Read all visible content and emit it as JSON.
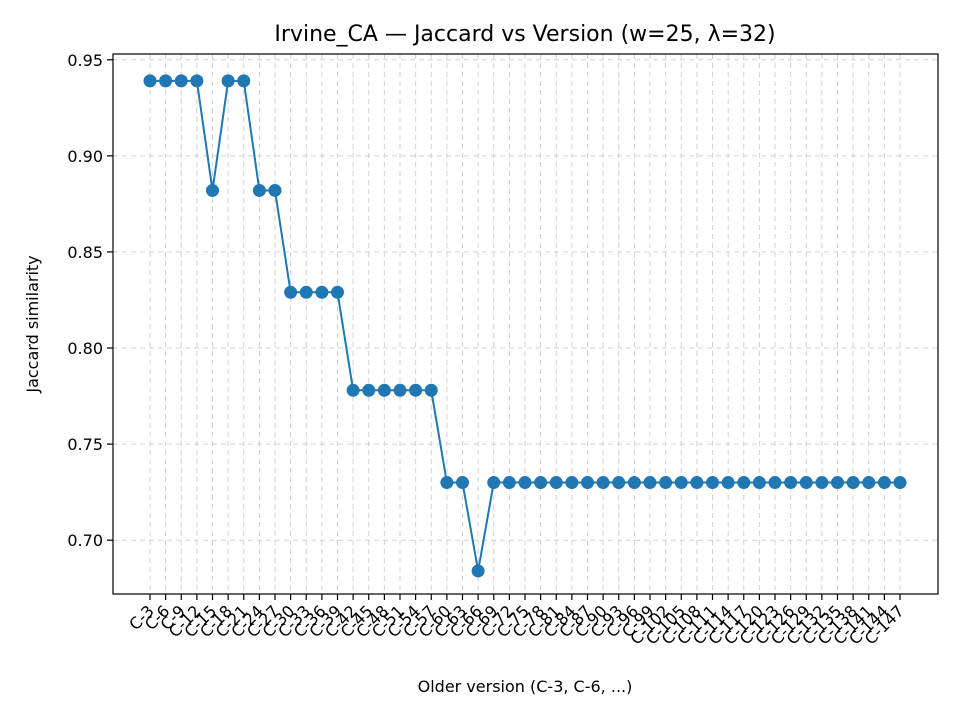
{
  "chart_data": {
    "type": "line",
    "title": "Irvine_CA — Jaccard vs Version (w=25, λ=32)",
    "xlabel": "Older version (C-3, C-6, ...)",
    "ylabel": "Jaccard similarity",
    "ylim": [
      0.672,
      0.953
    ],
    "yticks": [
      0.7,
      0.75,
      0.8,
      0.85,
      0.9,
      0.95
    ],
    "grid": true,
    "series_color": "#1f77b4",
    "categories": [
      "C-3",
      "C-6",
      "C-9",
      "C-12",
      "C-15",
      "C-18",
      "C-21",
      "C-24",
      "C-27",
      "C-30",
      "C-33",
      "C-36",
      "C-39",
      "C-42",
      "C-45",
      "C-48",
      "C-51",
      "C-54",
      "C-57",
      "C-60",
      "C-63",
      "C-66",
      "C-69",
      "C-72",
      "C-75",
      "C-78",
      "C-81",
      "C-84",
      "C-87",
      "C-90",
      "C-93",
      "C-96",
      "C-99",
      "C-102",
      "C-105",
      "C-108",
      "C-111",
      "C-114",
      "C-117",
      "C-120",
      "C-123",
      "C-126",
      "C-129",
      "C-132",
      "C-135",
      "C-138",
      "C-141",
      "C-144",
      "C-147"
    ],
    "values": [
      0.939,
      0.939,
      0.939,
      0.939,
      0.882,
      0.939,
      0.939,
      0.882,
      0.882,
      0.829,
      0.829,
      0.829,
      0.829,
      0.778,
      0.778,
      0.778,
      0.778,
      0.778,
      0.778,
      0.73,
      0.73,
      0.684,
      0.73,
      0.73,
      0.73,
      0.73,
      0.73,
      0.73,
      0.73,
      0.73,
      0.73,
      0.73,
      0.73,
      0.73,
      0.73,
      0.73,
      0.73,
      0.73,
      0.73,
      0.73,
      0.73,
      0.73,
      0.73,
      0.73,
      0.73,
      0.73,
      0.73,
      0.73,
      0.73
    ]
  }
}
